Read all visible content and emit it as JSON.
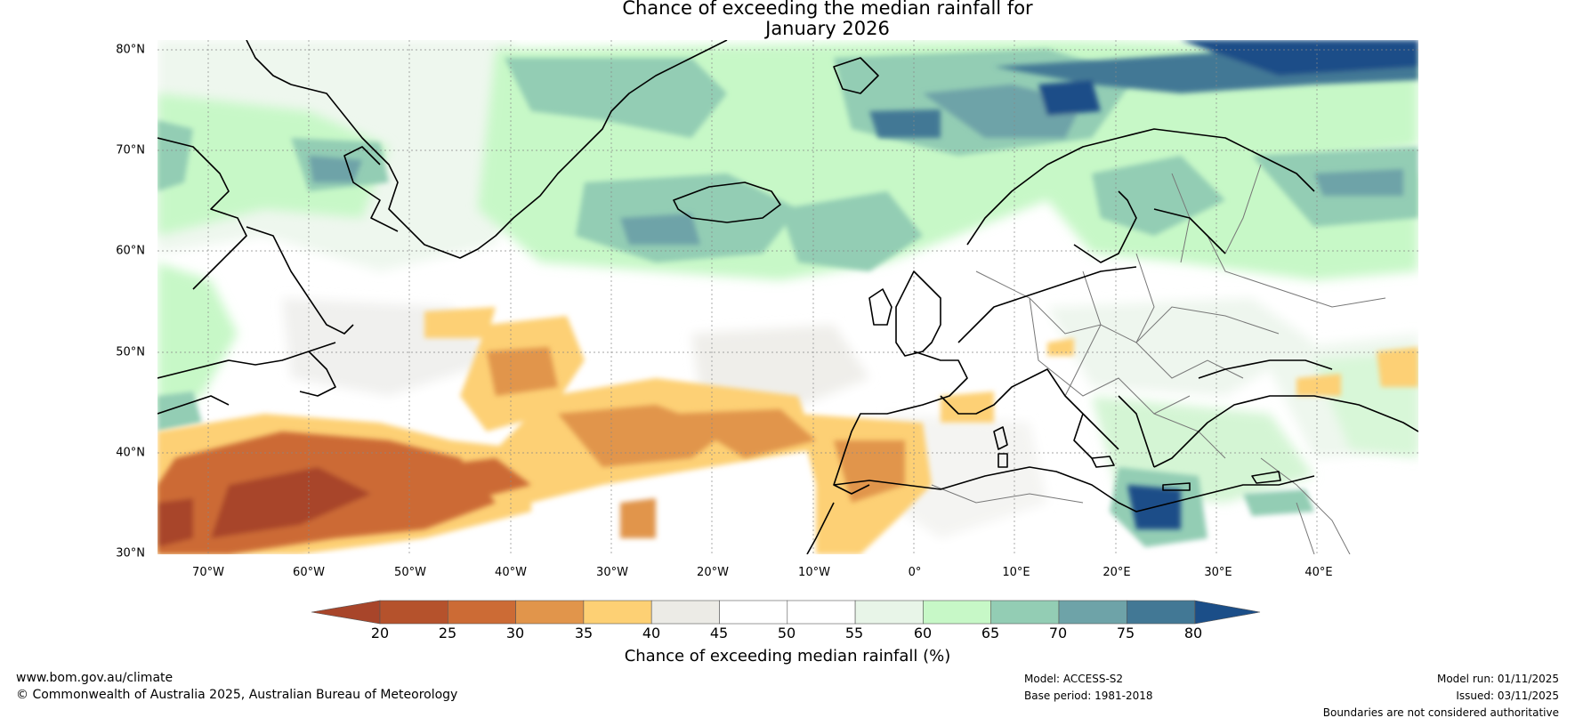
{
  "title": {
    "line1": "Chance of exceeding the median rainfall for",
    "line2": "January 2026"
  },
  "map": {
    "region": "North Atlantic and Europe",
    "lat_labels": [
      "80°N",
      "70°N",
      "60°N",
      "50°N",
      "40°N",
      "30°N"
    ],
    "lon_labels": [
      "70°W",
      "60°W",
      "50°W",
      "40°W",
      "30°W",
      "20°W",
      "10°W",
      "0°",
      "10°E",
      "20°E",
      "30°E",
      "40°E"
    ],
    "lat_range": [
      30,
      81
    ],
    "lon_range": [
      -75,
      50
    ]
  },
  "colorbar": {
    "ticks": [
      "20",
      "25",
      "30",
      "35",
      "40",
      "45",
      "50",
      "55",
      "60",
      "65",
      "70",
      "75",
      "80"
    ],
    "colors": [
      "#a8452a",
      "#b5522c",
      "#cc6b35",
      "#e1954b",
      "#fdd074",
      "#ecebe6",
      "#ffffff",
      "#ffffff",
      "#e8f5e8",
      "#c7f8c7",
      "#93cdb4",
      "#6ea3a8",
      "#427895",
      "#1b4e88"
    ],
    "label": "Chance of exceeding median rainfall (%)"
  },
  "footer": {
    "website": "www.bom.gov.au/climate",
    "copyright": "© Commonwealth of Australia 2025, Australian Bureau of Meteorology",
    "model": "Model: ACCESS-S2",
    "base_period": "Base period: 1981-2018",
    "model_run": "Model run: 01/11/2025",
    "issued": "Issued: 03/11/2025",
    "disclaimer": "Boundaries are not considered authoritative"
  }
}
